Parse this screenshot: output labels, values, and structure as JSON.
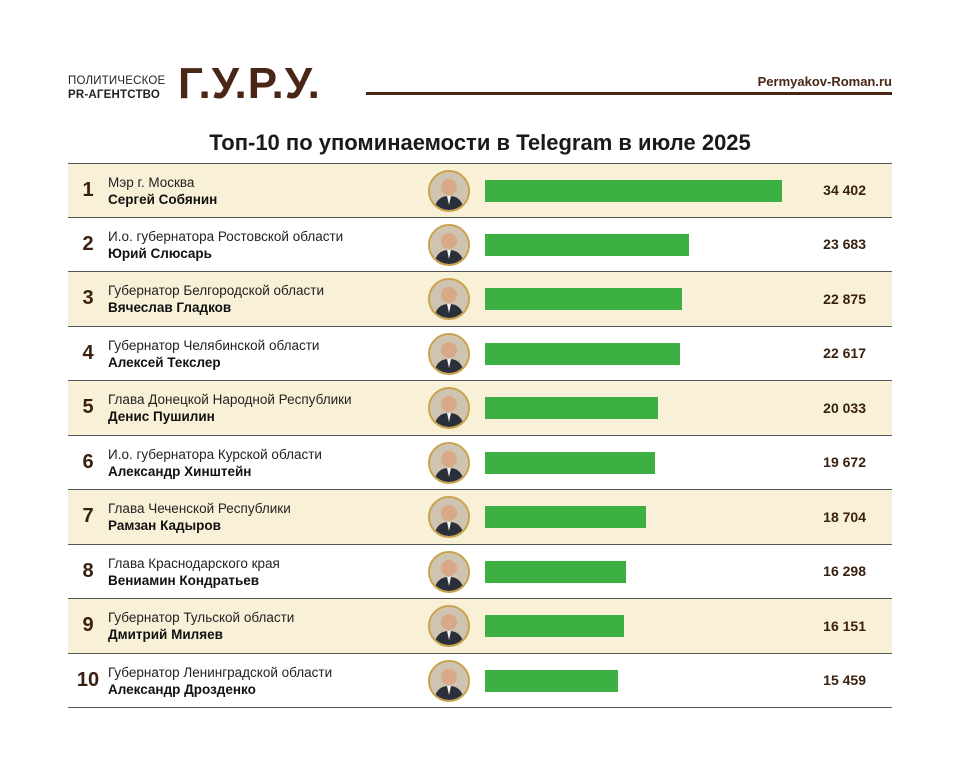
{
  "header": {
    "agency_line1": "ПОЛИТИЧЕСКОЕ",
    "agency_line2": "PR-АГЕНТСТВО",
    "logo": "Г.У.Р.У.",
    "site": "Permyakov-Roman.ru",
    "brand_color": "#4a2616"
  },
  "chart_data": {
    "type": "bar",
    "title": "Топ-10 по упоминаемости в Telegram в июле 2025",
    "orientation": "horizontal",
    "bar_color": "#3cb043",
    "row_shade_color": "#f8f1d8",
    "categories": [
      "Сергей Собянин",
      "Юрий Слюсарь",
      "Вячеслав Гладков",
      "Алексей Текслер",
      "Денис Пушилин",
      "Александр Хинштейн",
      "Рамзан Кадыров",
      "Вениамин Кондратьев",
      "Дмитрий Миляев",
      "Александр Дрозденко"
    ],
    "values": [
      34402,
      23683,
      22875,
      22617,
      20033,
      19672,
      18704,
      16298,
      16151,
      15459
    ],
    "rows": [
      {
        "rank": "1",
        "role": "Мэр г. Москва",
        "name": "Сергей Собянин",
        "value": 34402,
        "value_label": "34 402"
      },
      {
        "rank": "2",
        "role": "И.о. губернатора Ростовской области",
        "name": "Юрий Слюсарь",
        "value": 23683,
        "value_label": "23 683"
      },
      {
        "rank": "3",
        "role": "Губернатор Белгородской области",
        "name": "Вячеслав Гладков",
        "value": 22875,
        "value_label": "22 875"
      },
      {
        "rank": "4",
        "role": "Губернатор Челябинской области",
        "name": "Алексей Текслер",
        "value": 22617,
        "value_label": "22 617"
      },
      {
        "rank": "5",
        "role": "Глава Донецкой Народной Республики",
        "name": "Денис Пушилин",
        "value": 20033,
        "value_label": "20 033"
      },
      {
        "rank": "6",
        "role": "И.о. губернатора Курской области",
        "name": "Александр Хинштейн",
        "value": 19672,
        "value_label": "19 672"
      },
      {
        "rank": "7",
        "role": "Глава Чеченской Республики",
        "name": "Рамзан Кадыров",
        "value": 18704,
        "value_label": "18 704"
      },
      {
        "rank": "8",
        "role": "Глава Краснодарского края",
        "name": "Вениамин Кондратьев",
        "value": 16298,
        "value_label": "16 298"
      },
      {
        "rank": "9",
        "role": "Губернатор Тульской области",
        "name": "Дмитрий Миляев",
        "value": 16151,
        "value_label": "16 151"
      },
      {
        "rank": "10",
        "role": "Губернатор Ленинградской области",
        "name": "Александр Дрозденко",
        "value": 15459,
        "value_label": "15 459"
      }
    ]
  }
}
